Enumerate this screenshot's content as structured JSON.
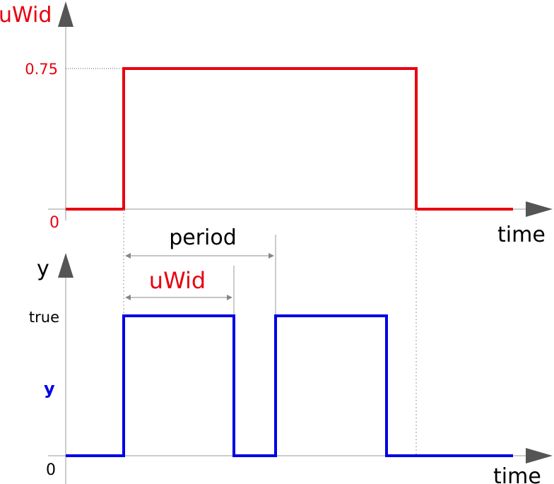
{
  "colors": {
    "input_signal": "#e8000f",
    "output_signal": "#0000e6",
    "axis": "#555555",
    "guide": "#999999",
    "text": "#000000"
  },
  "top_plot": {
    "y_axis_label": "uWid",
    "x_axis_label": "time",
    "y_tick_high": "0.75",
    "y_tick_zero": "0"
  },
  "bottom_plot": {
    "y_axis_label": "y",
    "x_axis_label": "time",
    "y_tick_high": "true",
    "y_tick_zero": "0",
    "signal_label": "y"
  },
  "annotations": {
    "period_label": "period",
    "width_label": "uWid"
  }
}
